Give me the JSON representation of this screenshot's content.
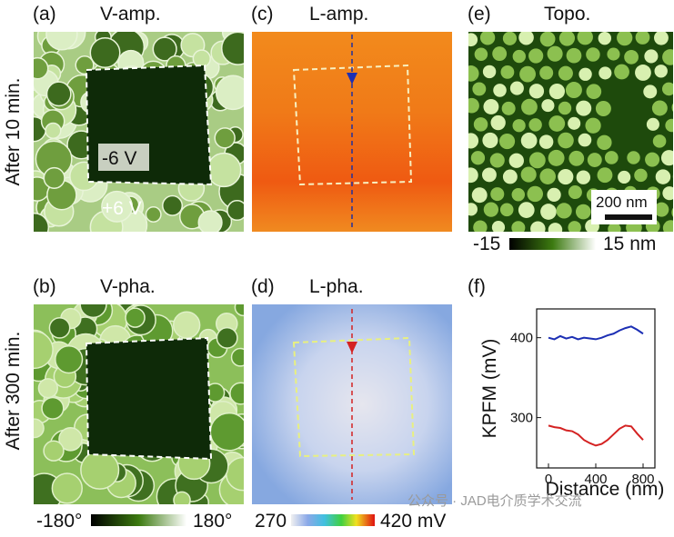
{
  "row_labels": [
    "After 10 min.",
    "After 300 min."
  ],
  "panels": [
    {
      "label": "(a)",
      "title": "V-amp.",
      "annotations": [
        "-6 V",
        "+6 V"
      ]
    },
    {
      "label": "(b)",
      "title": "V-pha."
    },
    {
      "label": "(c)",
      "title": "L-amp."
    },
    {
      "label": "(d)",
      "title": "L-pha."
    },
    {
      "label": "(e)",
      "title": "Topo.",
      "scale_bar": "200 nm"
    }
  ],
  "colorbars": [
    {
      "min": "-15",
      "max": "15 nm"
    },
    {
      "min": "-180°",
      "max": "180°"
    },
    {
      "min": "270",
      "max": "420 mV"
    }
  ],
  "chart_data": {
    "type": "line",
    "label": "(f)",
    "xlabel": "Distance (nm)",
    "ylabel": "KPFM (mV)",
    "x": [
      0,
      50,
      100,
      150,
      200,
      250,
      300,
      350,
      400,
      450,
      500,
      550,
      600,
      650,
      700,
      750,
      800
    ],
    "series": [
      {
        "color": "#1c2fb4",
        "values": [
          400,
          398,
          402,
          399,
          401,
          398,
          400,
          399,
          398,
          400,
          403,
          405,
          409,
          412,
          414,
          410,
          405
        ]
      },
      {
        "color": "#d42222",
        "values": [
          290,
          288,
          287,
          284,
          283,
          279,
          272,
          268,
          265,
          267,
          272,
          279,
          286,
          290,
          289,
          280,
          272
        ]
      }
    ],
    "xlim": [
      -100,
      900
    ],
    "ylim": [
      237,
      436
    ],
    "xticks": [
      0,
      400,
      800
    ],
    "yticks": [
      300,
      400
    ]
  },
  "watermark": "公众号 · JAD电介质学术交流"
}
